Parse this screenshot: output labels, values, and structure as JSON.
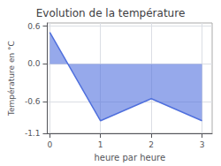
{
  "chart_data": {
    "type": "line",
    "title": "Evolution de la température",
    "xlabel": "heure par heure",
    "ylabel": "Température en °C",
    "x": [
      0,
      1,
      2,
      3
    ],
    "values": [
      0.5,
      -0.9,
      -0.55,
      -0.9
    ],
    "xlim": [
      -0.05,
      3.2
    ],
    "xticks": [
      0,
      1,
      2,
      3
    ],
    "ylim": [
      -1.1,
      0.65
    ],
    "yticks": [
      0.6,
      {
        "value": 0.0,
        "label": "0.0"
      },
      -0.6,
      -1.1
    ],
    "grid": true
  }
}
